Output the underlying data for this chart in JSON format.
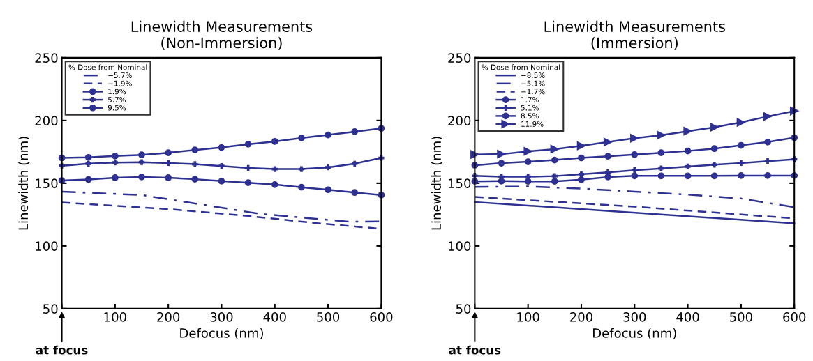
{
  "chart_data": [
    {
      "type": "line",
      "title": "Linewidth Measurements\n(Non-Immersion)",
      "xlabel": "Defocus (nm)",
      "ylabel": "Linewidth (nm)",
      "legend_title": "% Dose from Nominal",
      "legend": "top left",
      "grid": false,
      "xlim": [
        0,
        600
      ],
      "ylim": [
        50,
        250
      ],
      "xticks": [
        {
          "value": 0,
          "label": null
        },
        100,
        200,
        300,
        400,
        500,
        600
      ],
      "yticks": [
        50,
        100,
        150,
        200,
        250
      ],
      "annotations": [
        "at focus"
      ],
      "series": [
        {
          "name": "−5.7%",
          "color": "#2e3192",
          "line_style": "dashdot",
          "marker": "none",
          "x": [
            0,
            150,
            260,
            370,
            540,
            600
          ],
          "values": [
            143.3,
            140.6,
            133.2,
            125.7,
            119.3,
            119.6
          ]
        },
        {
          "name": "−1.9%",
          "color": "#2e3192",
          "line_style": "dashed",
          "marker": "none",
          "x": [
            0,
            200,
            350,
            475,
            600
          ],
          "values": [
            134.6,
            129.4,
            123.9,
            118.3,
            113.7
          ]
        },
        {
          "name": "1.9%",
          "color": "#2e3192",
          "line_style": "solid",
          "marker": "circle",
          "x": [
            0,
            50,
            100,
            150,
            200,
            250,
            300,
            350,
            400,
            450,
            500,
            550,
            600
          ],
          "values": [
            152.1,
            153,
            154.4,
            155,
            154.4,
            153.2,
            151.7,
            150.4,
            148.9,
            146.8,
            144.8,
            142.6,
            140.6
          ]
        },
        {
          "name": "5.7%",
          "color": "#2e3192",
          "line_style": "solid",
          "marker": "cross",
          "x": [
            0,
            50,
            100,
            150,
            200,
            250,
            300,
            350,
            400,
            450,
            500,
            550,
            600
          ],
          "values": [
            163.9,
            165.6,
            166.5,
            166.8,
            166.1,
            165.2,
            163.7,
            162.2,
            161.3,
            161.3,
            162.6,
            165.6,
            170.2
          ]
        },
        {
          "name": "9.5%",
          "color": "#2e3192",
          "line_style": "solid",
          "marker": "circle",
          "x": [
            0,
            50,
            100,
            150,
            200,
            250,
            300,
            350,
            400,
            450,
            500,
            550,
            600
          ],
          "values": [
            170.2,
            170.6,
            171.7,
            172.6,
            174.3,
            176.5,
            178.5,
            181.1,
            183.3,
            186.1,
            188.5,
            191.1,
            193.7
          ]
        }
      ]
    },
    {
      "type": "line",
      "title": "Linewidth Measurements\n(Immersion)",
      "xlabel": "Defocus (nm)",
      "ylabel": "Linewidth (nm)",
      "legend_title": "% Dose from Nominal",
      "legend": "top left",
      "grid": false,
      "xlim": [
        0,
        600
      ],
      "ylim": [
        50,
        250
      ],
      "xticks": [
        {
          "value": 0,
          "label": null
        },
        100,
        200,
        300,
        400,
        500,
        600
      ],
      "yticks": [
        50,
        100,
        150,
        200,
        250
      ],
      "annotations": [
        "at focus"
      ],
      "series": [
        {
          "name": "−8.5%",
          "color": "#2e3192",
          "line_style": "solid",
          "marker": "none",
          "x": [
            0,
            600
          ],
          "values": [
            135,
            118
          ]
        },
        {
          "name": "−5.1%",
          "color": "#2e3192",
          "line_style": "dashdot",
          "marker": "none",
          "x": [
            0,
            100,
            200,
            300,
            400,
            500,
            600
          ],
          "values": [
            147,
            147.4,
            145.7,
            143.3,
            140.9,
            137.8,
            130.9
          ]
        },
        {
          "name": "−1.7%",
          "color": "#2e3192",
          "line_style": "dashed",
          "marker": "none",
          "x": [
            0,
            300,
            600
          ],
          "values": [
            139.1,
            131.3,
            122
          ]
        },
        {
          "name": "1.7%",
          "color": "#2e3192",
          "line_style": "solid",
          "marker": "circle",
          "x": [
            0,
            50,
            100,
            150,
            200,
            250,
            300,
            350,
            400,
            450,
            500,
            550,
            600
          ],
          "values": [
            151.5,
            151.7,
            151.5,
            151.5,
            152.8,
            155,
            155.9,
            155.9,
            155.9,
            155.9,
            156.1,
            156.1,
            156.1
          ]
        },
        {
          "name": "5.1%",
          "color": "#2e3192",
          "line_style": "solid",
          "marker": "cross",
          "x": [
            0,
            50,
            100,
            150,
            200,
            250,
            300,
            350,
            400,
            450,
            500,
            550,
            600
          ],
          "values": [
            155.9,
            155.2,
            155.2,
            155.7,
            157.2,
            158.7,
            160.4,
            161.8,
            163.3,
            164.8,
            166.1,
            167.6,
            169.1
          ]
        },
        {
          "name": "8.5%",
          "color": "#2e3192",
          "line_style": "solid",
          "marker": "circle",
          "x": [
            0,
            50,
            100,
            150,
            200,
            250,
            300,
            350,
            400,
            450,
            500,
            550,
            600
          ],
          "values": [
            164.3,
            166,
            167.1,
            168.5,
            170.2,
            171.5,
            172.8,
            174.3,
            175.7,
            177.6,
            180.2,
            182.8,
            186.3
          ]
        },
        {
          "name": "11.9%",
          "color": "#2e3192",
          "line_style": "solid",
          "marker": "triangle",
          "x": [
            0,
            50,
            100,
            150,
            200,
            250,
            300,
            350,
            400,
            450,
            500,
            550,
            600
          ],
          "values": [
            172.9,
            173.2,
            175.4,
            177.2,
            179.8,
            182.8,
            185.9,
            188.3,
            191.5,
            194.6,
            198.5,
            203.2,
            207.6
          ]
        }
      ]
    }
  ]
}
